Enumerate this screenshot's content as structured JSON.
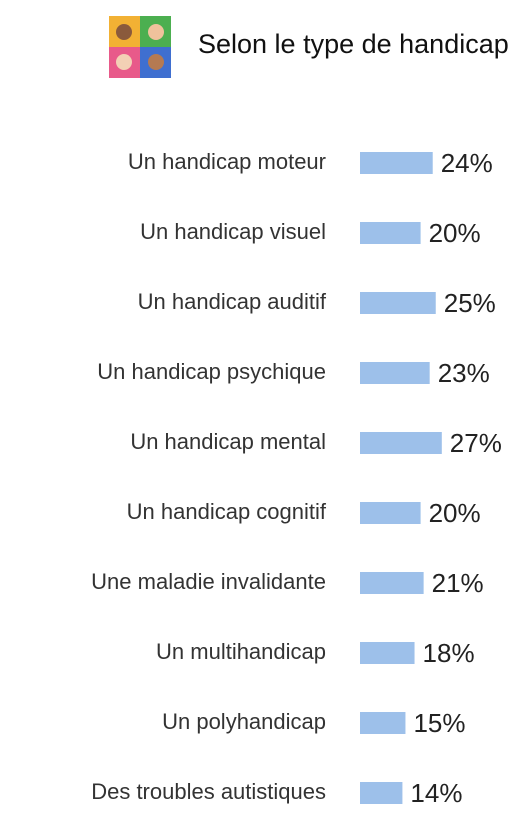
{
  "chart_data": {
    "type": "bar",
    "orientation": "horizontal",
    "title": "Selon le type de handicap",
    "categories": [
      "Un handicap moteur",
      "Un handicap visuel",
      "Un handicap auditif",
      "Un handicap psychique",
      "Un handicap mental",
      "Un handicap cognitif",
      "Une maladie invalidante",
      "Un multihandicap",
      "Un polyhandicap",
      "Des troubles autistiques"
    ],
    "values": [
      24,
      20,
      25,
      23,
      27,
      20,
      21,
      18,
      15,
      14
    ],
    "value_labels": [
      "24%",
      "20%",
      "25%",
      "23%",
      "27%",
      "20%",
      "21%",
      "18%",
      "15%",
      "14%"
    ],
    "color": "#9dc0ea"
  }
}
